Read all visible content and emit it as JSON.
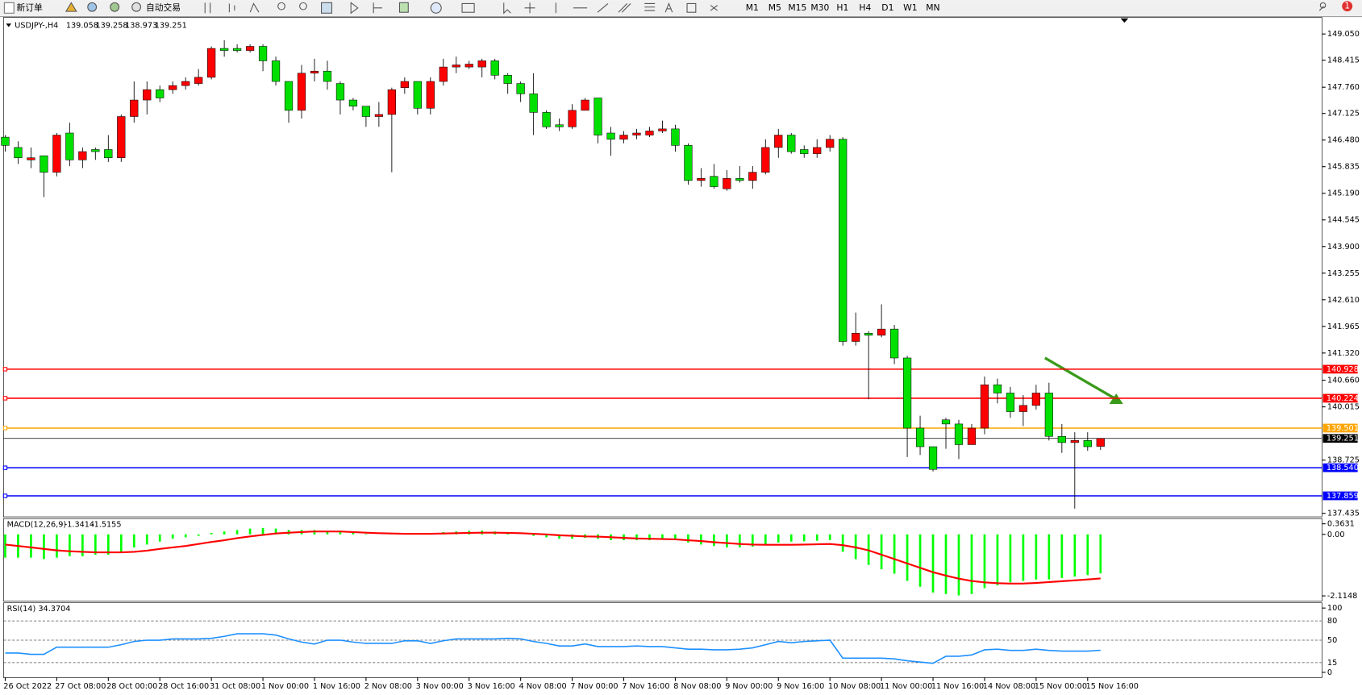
{
  "toolbar": {
    "buttons": [
      "新订单",
      "自动交易"
    ],
    "timeframes": [
      "M1",
      "M5",
      "M15",
      "M30",
      "H1",
      "H4",
      "D1",
      "W1",
      "MN"
    ],
    "badge": "1"
  },
  "chart_data": [
    {
      "type": "candlestick",
      "symbol": "USDJPY-,H4",
      "up_color": "#ff0000",
      "down_color": "#00e000",
      "categories": [
        "26 Oct 2022",
        null,
        null,
        null,
        "27 Oct 08:00",
        null,
        null,
        null,
        "28 Oct 00:00",
        null,
        null,
        null,
        "28 Oct 16:00",
        null,
        null,
        null,
        "31 Oct 08:00",
        null,
        null,
        null,
        "1 Nov 00:00",
        null,
        null,
        null,
        "1 Nov 16:00",
        null,
        null,
        null,
        "2 Nov 08:00",
        null,
        null,
        null,
        "3 Nov 00:00",
        null,
        null,
        null,
        "3 Nov 16:00",
        null,
        null,
        null,
        "4 Nov 08:00",
        null,
        null,
        null,
        "7 Nov 00:00",
        null,
        null,
        null,
        "7 Nov 16:00",
        null,
        null,
        null,
        "8 Nov 08:00",
        null,
        null,
        null,
        "9 Nov 00:00",
        null,
        null,
        null,
        "9 Nov 16:00",
        null,
        null,
        null,
        "10 Nov 08:00",
        null,
        null,
        null,
        "11 Nov 00:00",
        null,
        null,
        null,
        "11 Nov 16:00",
        null,
        null,
        null,
        "14 Nov 08:00",
        null,
        null,
        null,
        "15 Nov 00:00",
        null,
        null,
        null,
        "15 Nov 16:00",
        null
      ],
      "open": [
        146.55,
        146.3,
        146.0,
        146.1,
        145.7,
        146.65,
        146.0,
        146.25,
        146.25,
        146.05,
        147.05,
        147.45,
        147.7,
        147.7,
        147.8,
        147.85,
        148.0,
        148.7,
        148.7,
        148.65,
        148.75,
        148.4,
        147.9,
        147.2,
        148.1,
        148.15,
        147.85,
        147.45,
        147.3,
        147.05,
        147.1,
        147.75,
        147.9,
        147.25,
        147.9,
        148.25,
        148.25,
        148.25,
        148.4,
        148.05,
        147.85,
        147.6,
        147.15,
        146.85,
        146.8,
        147.2,
        147.5,
        146.65,
        146.5,
        146.6,
        146.6,
        146.7,
        146.75,
        146.35,
        145.5,
        145.6,
        145.3,
        145.55,
        145.5,
        145.7,
        146.3,
        146.6,
        146.25,
        146.15,
        146.3,
        146.5,
        141.6,
        141.8,
        141.75,
        141.9,
        141.2,
        139.5,
        139.05,
        139.7,
        139.6,
        139.1,
        139.5,
        140.55,
        140.35,
        139.9,
        140.05,
        140.35,
        139.3,
        139.15,
        139.2,
        139.058
      ],
      "high": [
        146.6,
        146.45,
        146.3,
        146.1,
        146.65,
        146.9,
        146.3,
        146.3,
        146.6,
        147.1,
        147.9,
        147.9,
        147.8,
        147.9,
        148.0,
        148.2,
        148.75,
        148.9,
        148.8,
        148.8,
        148.8,
        148.5,
        147.9,
        148.3,
        148.45,
        148.4,
        147.9,
        147.5,
        147.3,
        147.4,
        147.75,
        148.0,
        147.9,
        148.0,
        148.45,
        148.5,
        148.4,
        148.45,
        148.45,
        148.1,
        147.9,
        148.1,
        147.2,
        147.0,
        147.35,
        147.5,
        147.5,
        146.8,
        146.7,
        146.75,
        146.8,
        146.95,
        146.85,
        146.4,
        145.8,
        145.9,
        145.75,
        145.85,
        145.85,
        146.5,
        146.75,
        146.65,
        146.35,
        146.5,
        146.6,
        146.55,
        142.3,
        141.85,
        142.5,
        142.0,
        141.25,
        139.8,
        139.05,
        139.75,
        139.7,
        139.6,
        140.75,
        140.7,
        140.5,
        140.3,
        140.55,
        140.6,
        139.6,
        139.4,
        139.4,
        139.258
      ],
      "low": [
        146.2,
        145.9,
        145.8,
        145.1,
        145.6,
        145.85,
        145.8,
        146.0,
        145.95,
        145.95,
        146.9,
        147.1,
        147.4,
        147.6,
        147.7,
        147.8,
        147.95,
        148.5,
        148.6,
        148.6,
        148.15,
        147.8,
        146.9,
        147.0,
        147.9,
        147.7,
        147.1,
        147.2,
        146.8,
        146.8,
        145.7,
        147.6,
        147.1,
        147.1,
        147.8,
        148.1,
        148.2,
        148.0,
        147.95,
        147.6,
        147.4,
        146.6,
        146.75,
        146.7,
        146.75,
        147.2,
        146.4,
        146.1,
        146.4,
        146.5,
        146.55,
        146.65,
        146.2,
        145.4,
        145.35,
        145.3,
        145.25,
        145.45,
        145.3,
        145.65,
        146.05,
        146.15,
        146.05,
        146.05,
        146.2,
        141.5,
        141.5,
        140.2,
        141.7,
        141.05,
        138.8,
        138.85,
        138.45,
        139.0,
        138.75,
        139.1,
        139.35,
        140.1,
        139.75,
        139.55,
        139.95,
        139.2,
        138.9,
        137.55,
        138.95,
        138.973
      ],
      "close": [
        146.35,
        146.05,
        146.05,
        145.7,
        146.6,
        146.0,
        146.2,
        146.2,
        146.05,
        147.05,
        147.45,
        147.7,
        147.5,
        147.8,
        147.9,
        148.0,
        148.7,
        148.65,
        148.65,
        148.75,
        148.4,
        147.9,
        147.2,
        148.1,
        148.15,
        147.9,
        147.45,
        147.3,
        147.05,
        147.1,
        147.7,
        147.9,
        147.25,
        147.9,
        148.25,
        148.3,
        148.32,
        148.4,
        148.05,
        147.85,
        147.6,
        147.15,
        146.8,
        146.8,
        147.2,
        147.45,
        146.6,
        146.5,
        146.6,
        146.65,
        146.7,
        146.75,
        146.35,
        145.5,
        145.55,
        145.35,
        145.55,
        145.5,
        145.7,
        146.3,
        146.6,
        146.2,
        146.15,
        146.3,
        146.5,
        141.6,
        141.8,
        141.75,
        141.9,
        141.2,
        139.5,
        139.05,
        138.5,
        139.6,
        139.1,
        139.5,
        140.55,
        140.35,
        139.9,
        140.05,
        140.35,
        139.3,
        139.15,
        139.2,
        139.05,
        139.251
      ],
      "ylim": [
        137.35,
        149.45
      ],
      "yticks": [
        {
          "value": 149.05,
          "label": "149.050"
        },
        148.415,
        {
          "value": 147.76,
          "label": "147.760"
        },
        147.125,
        {
          "value": 146.48,
          "label": "146.480"
        },
        145.835,
        {
          "value": 145.19,
          "label": "145.190"
        },
        144.545,
        {
          "value": 143.9,
          "label": "143.900"
        },
        143.255,
        {
          "value": 142.61,
          "label": "142.610"
        },
        141.965,
        {
          "value": 141.32,
          "label": "141.320"
        },
        {
          "value": 140.66,
          "label": "140.660"
        },
        140.015,
        138.725,
        137.435
      ],
      "levels": [
        {
          "value": 140.928,
          "label": "140.928",
          "color": "#ff0000"
        },
        {
          "value": 140.224,
          "label": "140.224",
          "color": "#ff0000"
        },
        {
          "value": 139.501,
          "label": "139.501",
          "color": "#ffa500"
        },
        {
          "value": 138.54,
          "label": "138.540",
          "color": "#0000ff"
        },
        {
          "value": 137.859,
          "label": "137.859",
          "color": "#0000ff"
        }
      ]
    },
    {
      "type": "macd",
      "title": "MACD(12,26,9)",
      "histogram": {
        "color": "#00ff00",
        "values": [
          -0.8,
          -0.8,
          -0.8,
          -0.85,
          -0.8,
          -0.75,
          -0.75,
          -0.7,
          -0.7,
          -0.6,
          -0.45,
          -0.35,
          -0.25,
          -0.15,
          -0.1,
          -0.05,
          0.05,
          0.1,
          0.15,
          0.2,
          0.22,
          0.2,
          0.15,
          0.15,
          0.15,
          0.12,
          0.1,
          0.05,
          0.02,
          0.0,
          0.02,
          0.03,
          0.02,
          0.05,
          0.08,
          0.1,
          0.12,
          0.13,
          0.1,
          0.05,
          0.0,
          -0.05,
          -0.1,
          -0.15,
          -0.15,
          -0.12,
          -0.15,
          -0.2,
          -0.2,
          -0.2,
          -0.2,
          -0.18,
          -0.2,
          -0.28,
          -0.35,
          -0.4,
          -0.45,
          -0.45,
          -0.42,
          -0.35,
          -0.28,
          -0.25,
          -0.24,
          -0.22,
          -0.2,
          -0.6,
          -0.85,
          -1.05,
          -1.2,
          -1.35,
          -1.6,
          -1.8,
          -2.0,
          -2.05,
          -2.1,
          -2.05,
          -1.85,
          -1.75,
          -1.65,
          -1.6,
          -1.55,
          -1.55,
          -1.5,
          -1.45,
          -1.4,
          -1.3414
        ]
      },
      "signal": {
        "color": "#ff0000",
        "values": [
          -0.35,
          -0.4,
          -0.45,
          -0.5,
          -0.55,
          -0.58,
          -0.6,
          -0.62,
          -0.62,
          -0.62,
          -0.6,
          -0.56,
          -0.5,
          -0.45,
          -0.4,
          -0.33,
          -0.26,
          -0.2,
          -0.13,
          -0.07,
          -0.02,
          0.03,
          0.06,
          0.08,
          0.1,
          0.1,
          0.1,
          0.08,
          0.06,
          0.04,
          0.03,
          0.02,
          0.02,
          0.02,
          0.03,
          0.04,
          0.05,
          0.06,
          0.06,
          0.05,
          0.04,
          0.02,
          0.0,
          -0.03,
          -0.05,
          -0.07,
          -0.08,
          -0.1,
          -0.12,
          -0.14,
          -0.15,
          -0.16,
          -0.17,
          -0.2,
          -0.23,
          -0.27,
          -0.3,
          -0.33,
          -0.35,
          -0.36,
          -0.36,
          -0.36,
          -0.35,
          -0.34,
          -0.33,
          -0.37,
          -0.45,
          -0.55,
          -0.7,
          -0.85,
          -1.0,
          -1.15,
          -1.3,
          -1.42,
          -1.52,
          -1.6,
          -1.65,
          -1.68,
          -1.69,
          -1.69,
          -1.67,
          -1.64,
          -1.61,
          -1.58,
          -1.55,
          -1.5155
        ]
      },
      "ylim": [
        -2.1148,
        0.3631
      ],
      "yticks": [
        0.3631,
        {
          "value": 0,
          "label": "0.00"
        },
        -2.1148
      ]
    },
    {
      "type": "line",
      "title": "RSI(14)",
      "color": "#1e90ff",
      "values": [
        30,
        30,
        28,
        28,
        39,
        39,
        39,
        39,
        39,
        43,
        48,
        50,
        50,
        52,
        52,
        52,
        53,
        56,
        60,
        60,
        60,
        58,
        52,
        47,
        44,
        50,
        50,
        47,
        45,
        45,
        45,
        49,
        49,
        45,
        49,
        52,
        52,
        52,
        52,
        53,
        52,
        48,
        45,
        41,
        41,
        44,
        40,
        40,
        40,
        41,
        40,
        40,
        38,
        36,
        36,
        35,
        35,
        36,
        38,
        43,
        48,
        46,
        48,
        49,
        50,
        22,
        22,
        22,
        22,
        21,
        18,
        16,
        14,
        25,
        25,
        27,
        35,
        36,
        34,
        34,
        36,
        34,
        33,
        33,
        33,
        34.3704
      ],
      "ylim": [
        0,
        100
      ],
      "yticks": [
        100,
        80,
        50,
        15,
        0
      ]
    }
  ]
}
